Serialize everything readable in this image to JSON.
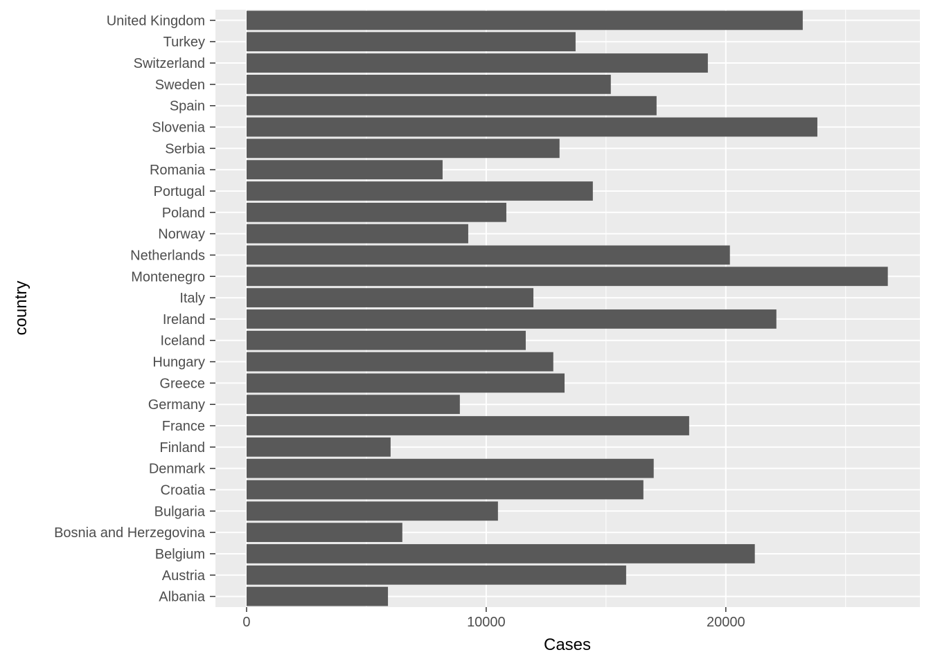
{
  "chart_data": {
    "type": "bar",
    "orientation": "horizontal",
    "title": "",
    "xlabel": "Cases",
    "ylabel": "country",
    "xlim": [
      -1300,
      28100
    ],
    "x_ticks": [
      0,
      10000,
      20000
    ],
    "x_tick_labels": [
      "0",
      "10000",
      "20000"
    ],
    "grid": true,
    "colors": {
      "panel": "#EBEBEB",
      "bar": "#595959",
      "grid": "#FFFFFF",
      "tick_text": "#4D4D4D",
      "title_text": "#000000"
    },
    "categories": [
      "Albania",
      "Austria",
      "Belgium",
      "Bosnia and Herzegovina",
      "Bulgaria",
      "Croatia",
      "Denmark",
      "Finland",
      "France",
      "Germany",
      "Greece",
      "Hungary",
      "Iceland",
      "Ireland",
      "Italy",
      "Montenegro",
      "Netherlands",
      "Norway",
      "Poland",
      "Portugal",
      "Romania",
      "Serbia",
      "Slovenia",
      "Spain",
      "Sweden",
      "Switzerland",
      "Turkey",
      "United Kingdom"
    ],
    "values": [
      5900,
      15840,
      21210,
      6500,
      10490,
      16560,
      16990,
      6010,
      18470,
      8900,
      13270,
      12800,
      11650,
      22110,
      11970,
      26760,
      20170,
      9250,
      10840,
      14450,
      8180,
      13060,
      23820,
      17110,
      15200,
      19250,
      13730,
      23210
    ]
  }
}
